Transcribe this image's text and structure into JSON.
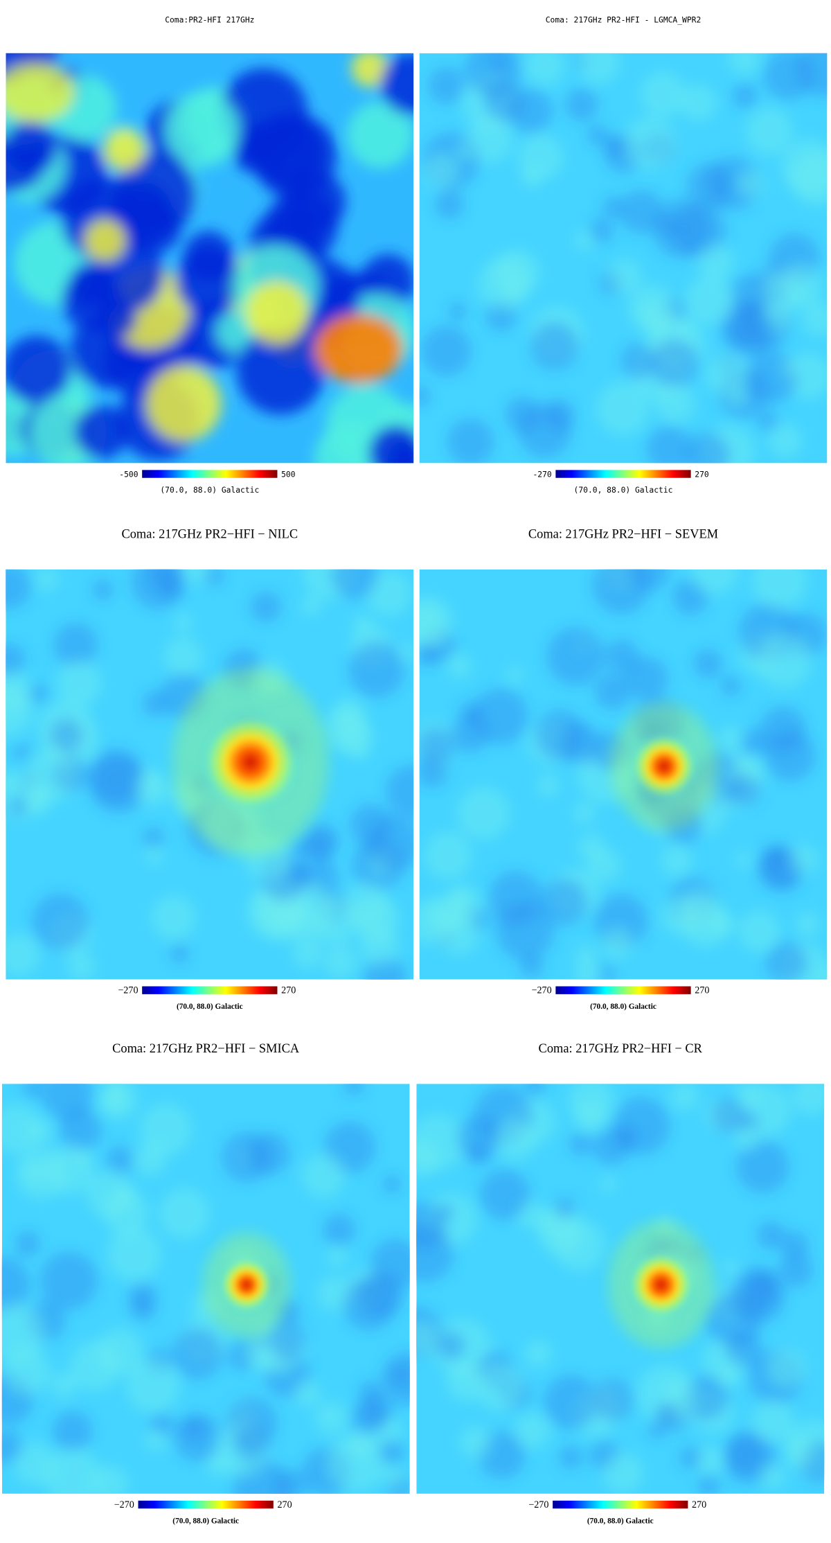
{
  "panels": [
    {
      "title": "Coma:PR2-HFI 217GHz",
      "colorbar_min": "-500",
      "colorbar_max": "500",
      "coordinates": "(70.0, 88.0) Galactic"
    },
    {
      "title": "Coma: 217GHz PR2-HFI - LGMCA_WPR2",
      "colorbar_min": "-270",
      "colorbar_max": "270",
      "coordinates": "(70.0, 88.0) Galactic"
    },
    {
      "title": "Coma: 217GHz PR2−HFI − NILC",
      "colorbar_min": "−270",
      "colorbar_max": "270",
      "coordinates": "(70.0, 88.0) Galactic"
    },
    {
      "title": "Coma: 217GHz PR2−HFI − SEVEM",
      "colorbar_min": "−270",
      "colorbar_max": "270",
      "coordinates": "(70.0, 88.0) Galactic"
    },
    {
      "title": "Coma: 217GHz PR2−HFI − SMICA",
      "colorbar_min": "−270",
      "colorbar_max": "270",
      "coordinates": "(70.0, 88.0) Galactic"
    },
    {
      "title": "Coma: 217GHz PR2−HFI − CR",
      "colorbar_min": "−270",
      "colorbar_max": "270",
      "coordinates": "(70.0, 88.0) Galactic"
    }
  ]
}
